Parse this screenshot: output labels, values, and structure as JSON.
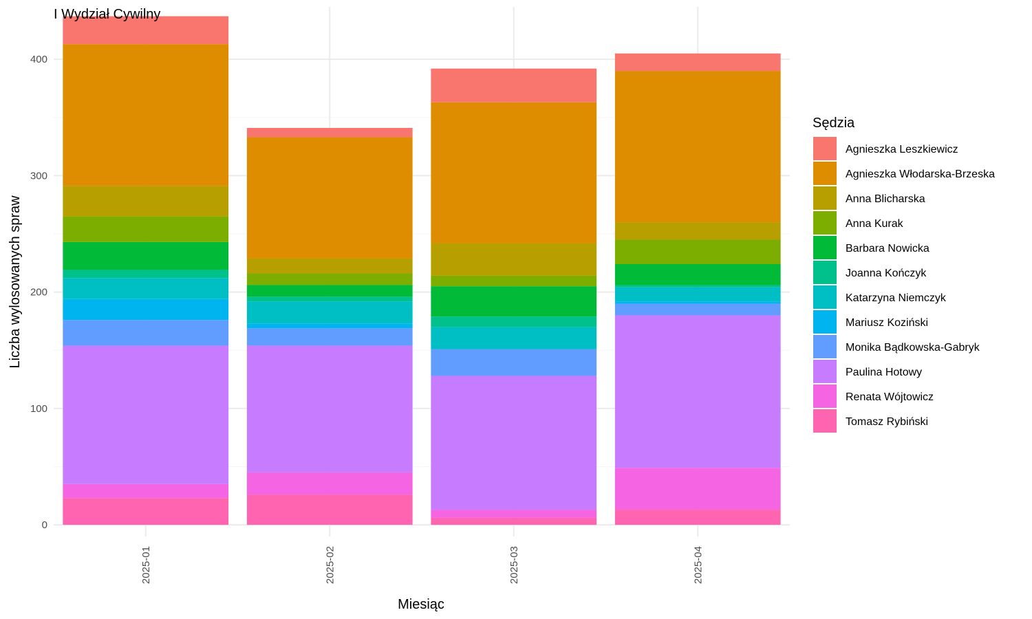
{
  "chart_data": {
    "type": "bar",
    "stacked": true,
    "title": "I Wydział Cywilny",
    "xlabel": "Miesiąc",
    "ylabel": "Liczba wylosowanych spraw",
    "ylim": [
      -10,
      445
    ],
    "yticks": [
      0,
      100,
      200,
      300,
      400
    ],
    "grid": true,
    "legend_position": "right",
    "legend_title": "Sędzia",
    "categories": [
      "2025-01",
      "2025-02",
      "2025-03",
      "2025-04"
    ],
    "series": [
      {
        "name": "Agnieszka Leszkiewicz",
        "color": "#F8766D",
        "values": [
          24,
          8,
          29,
          15
        ]
      },
      {
        "name": "Agnieszka Włodarska-Brzeska",
        "color": "#DE8C00",
        "values": [
          122,
          104,
          121,
          130
        ]
      },
      {
        "name": "Anna Blicharska",
        "color": "#B79F00",
        "values": [
          26,
          13,
          28,
          15
        ]
      },
      {
        "name": "Anna Kurak",
        "color": "#7CAE00",
        "values": [
          22,
          10,
          9,
          21
        ]
      },
      {
        "name": "Barbara Nowicka",
        "color": "#00BA38",
        "values": [
          24,
          10,
          26,
          18
        ]
      },
      {
        "name": "Joanna Kończyk",
        "color": "#00C08B",
        "values": [
          7,
          4,
          9,
          2
        ]
      },
      {
        "name": "Katarzyna Niemczyk",
        "color": "#00BFC4",
        "values": [
          18,
          19,
          19,
          12
        ]
      },
      {
        "name": "Mariusz Koziński",
        "color": "#00B4F0",
        "values": [
          18,
          4,
          0,
          2
        ]
      },
      {
        "name": "Monika Bądkowska-Gabryk",
        "color": "#619CFF",
        "values": [
          22,
          15,
          23,
          10
        ]
      },
      {
        "name": "Paulina Hotowy",
        "color": "#C77CFF",
        "values": [
          119,
          109,
          115,
          131
        ]
      },
      {
        "name": "Renata Wójtowicz",
        "color": "#F564E3",
        "values": [
          12,
          19,
          7,
          36
        ]
      },
      {
        "name": "Tomasz Rybiński",
        "color": "#FF64B0",
        "values": [
          23,
          26,
          6,
          13
        ]
      }
    ]
  }
}
